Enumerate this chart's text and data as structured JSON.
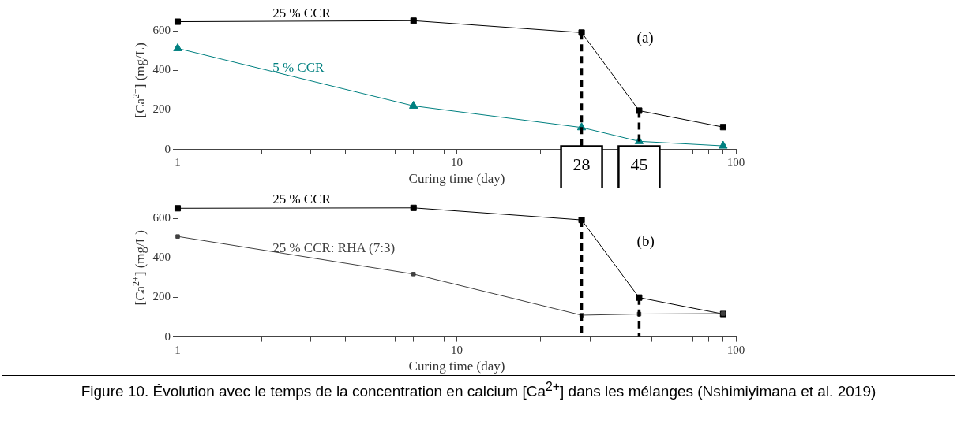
{
  "chart_data": [
    {
      "type": "line",
      "xlabel": "Curing time (day)",
      "ylabel": "[Ca$^{2+}$] (mg/L)",
      "log": "x",
      "grid": false,
      "legend": false,
      "xlim": [
        1,
        100
      ],
      "xticks": [
        1,
        {
          "value": 2,
          "label": null
        },
        {
          "value": 3,
          "label": null
        },
        {
          "value": 4,
          "label": null
        },
        {
          "value": 5,
          "label": null
        },
        {
          "value": 6,
          "label": null
        },
        {
          "value": 7,
          "label": null
        },
        {
          "value": 8,
          "label": null
        },
        {
          "value": 9,
          "label": null
        },
        10,
        {
          "value": 20,
          "label": null
        },
        {
          "value": 30,
          "label": null
        },
        {
          "value": 40,
          "label": null
        },
        {
          "value": 50,
          "label": null
        },
        {
          "value": 60,
          "label": null
        },
        {
          "value": 70,
          "label": null
        },
        {
          "value": 80,
          "label": null
        },
        {
          "value": 90,
          "label": null
        },
        100
      ],
      "ylim": [
        0,
        700
      ],
      "yticks": [
        0,
        200,
        400,
        600
      ],
      "x": [
        1,
        7,
        28,
        45,
        90
      ],
      "series": [
        {
          "name": "25 % CCR",
          "color": "#000000",
          "marker": "square",
          "values": [
            646,
            651,
            591,
            196,
            113
          ]
        },
        {
          "name": "5 % CCR",
          "color": "#008080",
          "marker": "triangle",
          "values": [
            511,
            220,
            111,
            41,
            18
          ]
        }
      ],
      "ref_lines": [
        {
          "axis": "x",
          "value": 28,
          "label": "28",
          "line_style": "dashed",
          "color": "#000000"
        },
        {
          "axis": "x",
          "value": 45,
          "label": "45",
          "line_style": "dashed",
          "color": "#000000"
        }
      ],
      "annotations": [
        "(a)"
      ]
    },
    {
      "type": "line",
      "xlabel": "Curing time (day)",
      "ylabel": "[Ca$^{2+}$] (mg/L)",
      "log": "x",
      "grid": false,
      "legend": false,
      "xlim": [
        1,
        100
      ],
      "xticks": [
        1,
        {
          "value": 2,
          "label": null
        },
        {
          "value": 3,
          "label": null
        },
        {
          "value": 4,
          "label": null
        },
        {
          "value": 5,
          "label": null
        },
        {
          "value": 6,
          "label": null
        },
        {
          "value": 7,
          "label": null
        },
        {
          "value": 8,
          "label": null
        },
        {
          "value": 9,
          "label": null
        },
        10,
        {
          "value": 20,
          "label": null
        },
        {
          "value": 30,
          "label": null
        },
        {
          "value": 40,
          "label": null
        },
        {
          "value": 50,
          "label": null
        },
        {
          "value": 60,
          "label": null
        },
        {
          "value": 70,
          "label": null
        },
        {
          "value": 80,
          "label": null
        },
        {
          "value": 90,
          "label": null
        },
        100
      ],
      "ylim": [
        0,
        700
      ],
      "yticks": [
        0,
        200,
        400,
        600
      ],
      "x": [
        1,
        7,
        28,
        45,
        90
      ],
      "series": [
        {
          "name": "25 % CCR",
          "color": "#000000",
          "marker": "square",
          "values": [
            651,
            653,
            592,
            199,
            116
          ]
        },
        {
          "name": "25 % CCR: RHA (7:3)",
          "color": "#404040",
          "marker": "square",
          "values": [
            508,
            318,
            110,
            116,
            118
          ]
        }
      ],
      "ref_lines": [
        {
          "axis": "x",
          "value": 28,
          "line_style": "dashed",
          "color": "#000000"
        },
        {
          "axis": "x",
          "value": 45,
          "line_style": "dashed",
          "color": "#000000"
        }
      ],
      "annotations": [
        "(b)",
        "Figure 10. Évolution avec le temps de la concentration en calcium [Ca$^{2+}$] dans les mélanges (Nshimiyimana et al. 2019)"
      ]
    }
  ]
}
